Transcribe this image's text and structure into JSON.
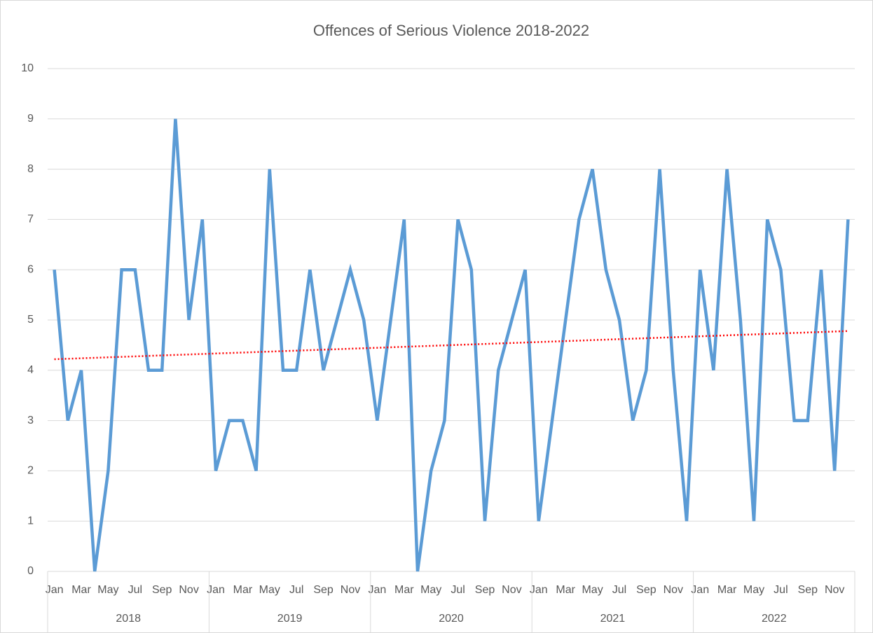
{
  "chart_data": {
    "type": "line",
    "title": "Offences of Serious Violence 2018-2022",
    "categories": [
      "Jan",
      null,
      "Mar",
      null,
      "May",
      null,
      "Jul",
      null,
      "Sep",
      null,
      "Nov",
      null,
      "Jan",
      null,
      "Mar",
      null,
      "May",
      null,
      "Jul",
      null,
      "Sep",
      null,
      "Nov",
      null,
      "Jan",
      null,
      "Mar",
      null,
      "May",
      null,
      "Jul",
      null,
      "Sep",
      null,
      "Nov",
      null,
      "Jan",
      null,
      "Mar",
      null,
      "May",
      null,
      "Jul",
      null,
      "Sep",
      null,
      "Nov",
      null,
      "Jan",
      null,
      "Mar",
      null,
      "May",
      null,
      "Jul",
      null,
      "Sep",
      null,
      "Nov",
      null
    ],
    "groups": [
      "2018",
      "2019",
      "2020",
      "2021",
      "2022"
    ],
    "values": [
      6,
      3,
      4,
      0,
      2,
      6,
      6,
      4,
      4,
      9,
      5,
      7,
      2,
      3,
      3,
      2,
      8,
      4,
      4,
      6,
      4,
      5,
      6,
      5,
      3,
      5,
      7,
      0,
      2,
      3,
      7,
      6,
      1,
      4,
      5,
      6,
      1,
      3,
      5,
      7,
      8,
      6,
      5,
      3,
      4,
      8,
      4,
      1,
      6,
      4,
      8,
      5,
      1,
      7,
      6,
      3,
      3,
      6,
      2,
      7
    ],
    "color": "#5b9bd5",
    "trendline": {
      "kind": "linear",
      "color": "#ff0000"
    },
    "ylim": [
      0,
      10
    ],
    "yticks": [
      0,
      1,
      2,
      3,
      4,
      5,
      6,
      7,
      8,
      9,
      10
    ],
    "grid": true
  }
}
